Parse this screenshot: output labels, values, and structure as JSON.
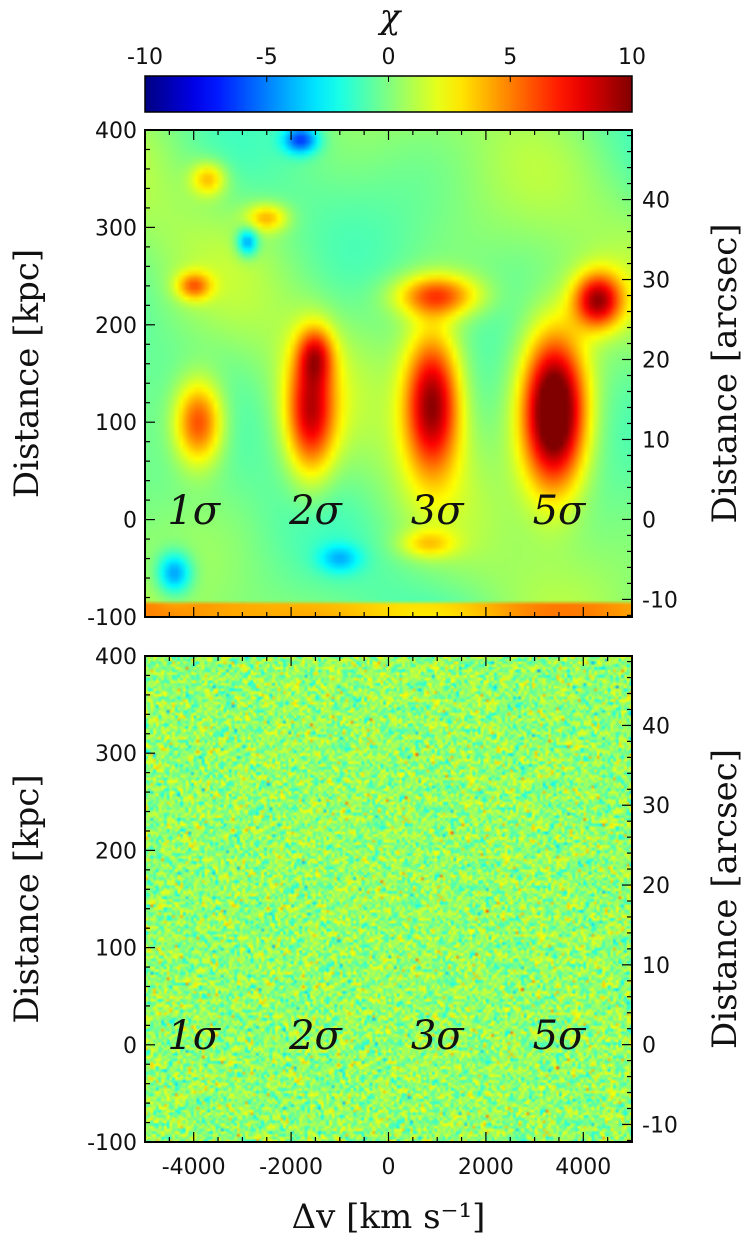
{
  "chart_data": [
    {
      "type": "heatmap",
      "panel": "top",
      "description_of_features": "smoothed chi map; positive detections at sigma levels",
      "xlim": [
        -5000,
        5000
      ],
      "ylim": [
        -100,
        400
      ],
      "y2lim": [
        -12.2,
        48.7
      ],
      "xticks": [
        -4000,
        -2000,
        0,
        2000,
        4000
      ],
      "yticks": [
        -100,
        0,
        100,
        200,
        300,
        400
      ],
      "y2ticks": [
        -10,
        0,
        10,
        20,
        30,
        40
      ],
      "ylabel": "Distance [kpc]",
      "y2label": "Distance [arcsec]",
      "annotations": [
        {
          "text": "1σ",
          "x": -4000,
          "y": 10
        },
        {
          "text": "2σ",
          "x": -1500,
          "y": 10
        },
        {
          "text": "3σ",
          "x": 1000,
          "y": 10
        },
        {
          "text": "5σ",
          "x": 3500,
          "y": 10
        }
      ],
      "blobs": [
        {
          "x": -3900,
          "y": 100,
          "sx": 350,
          "sy": 30,
          "amp": 7
        },
        {
          "x": -4000,
          "y": 240,
          "sx": 250,
          "sy": 10,
          "amp": 5
        },
        {
          "x": -1600,
          "y": 110,
          "sx": 350,
          "sy": 45,
          "amp": 8
        },
        {
          "x": -1500,
          "y": 170,
          "sx": 250,
          "sy": 20,
          "amp": 5
        },
        {
          "x": 900,
          "y": 120,
          "sx": 400,
          "sy": 50,
          "amp": 10
        },
        {
          "x": 1000,
          "y": 230,
          "sx": 600,
          "sy": 15,
          "amp": 6
        },
        {
          "x": 3400,
          "y": 110,
          "sx": 450,
          "sy": 55,
          "amp": 13
        },
        {
          "x": 4300,
          "y": 225,
          "sx": 350,
          "sy": 20,
          "amp": 9
        },
        {
          "x": -3700,
          "y": 350,
          "sx": 250,
          "sy": 12,
          "amp": 4
        },
        {
          "x": -2500,
          "y": 310,
          "sx": 300,
          "sy": 10,
          "amp": 4
        },
        {
          "x": -2900,
          "y": 285,
          "sx": 150,
          "sy": 10,
          "amp": -5
        },
        {
          "x": -4400,
          "y": -55,
          "sx": 250,
          "sy": 15,
          "amp": -5
        },
        {
          "x": -1000,
          "y": -40,
          "sx": 300,
          "sy": 10,
          "amp": -3
        },
        {
          "x": -1800,
          "y": 390,
          "sx": 250,
          "sy": 10,
          "amp": -6
        },
        {
          "x": 800,
          "y": -25,
          "sx": 400,
          "sy": 10,
          "amp": 3
        }
      ]
    },
    {
      "type": "heatmap",
      "panel": "bottom",
      "description_of_features": "noise map",
      "xlim": [
        -5000,
        5000
      ],
      "ylim": [
        -100,
        400
      ],
      "y2lim": [
        -12.2,
        48.7
      ],
      "xticks": [
        -4000,
        -2000,
        0,
        2000,
        4000
      ],
      "yticks": [
        -100,
        0,
        100,
        200,
        300,
        400
      ],
      "y2ticks": [
        -10,
        0,
        10,
        20,
        30,
        40
      ],
      "xlabel": "Δv [km s⁻¹]",
      "ylabel": "Distance [kpc]",
      "y2label": "Distance [arcsec]",
      "annotations": [
        {
          "text": "1σ",
          "x": -4000,
          "y": 10
        },
        {
          "text": "2σ",
          "x": -1500,
          "y": 10
        },
        {
          "text": "3σ",
          "x": 1000,
          "y": 10
        },
        {
          "text": "5σ",
          "x": 3500,
          "y": 10
        }
      ]
    }
  ],
  "colorbar": {
    "title": "χ",
    "range": [
      -10,
      10
    ],
    "ticks": [
      -10,
      -5,
      0,
      5,
      10
    ],
    "tick_labels": [
      "-10",
      "-5",
      "0",
      "5",
      "10"
    ],
    "colormap": "jet"
  }
}
